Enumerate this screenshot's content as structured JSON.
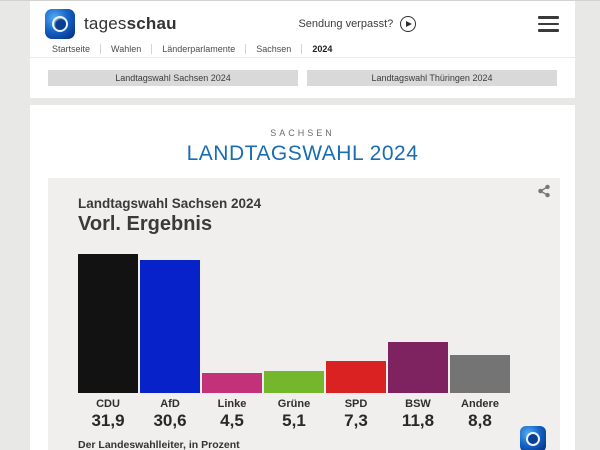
{
  "header": {
    "brand_regular": "tages",
    "brand_bold": "schau",
    "sendung_label": "Sendung verpasst?",
    "breadcrumb": [
      "Startseite",
      "Wahlen",
      "Länderparlamente",
      "Sachsen",
      "2024"
    ],
    "nav_buttons": [
      "Landtagswahl Sachsen 2024",
      "Landtagswahl Thüringen 2024"
    ]
  },
  "main": {
    "kicker": "SACHSEN",
    "title": "LANDTAGSWAHL 2024"
  },
  "chart_data": {
    "type": "bar",
    "title": "Landtagswahl Sachsen 2024",
    "subtitle": "Vorl. Ergebnis",
    "source": "Der Landeswahlleiter, in Prozent",
    "unit": "Prozent",
    "xlabel": "",
    "ylabel": "",
    "ylim": [
      0,
      32
    ],
    "grid": false,
    "legend": false,
    "categories": [
      "CDU",
      "AfD",
      "Linke",
      "Grüne",
      "SPD",
      "BSW",
      "Andere"
    ],
    "values": [
      31.9,
      30.6,
      4.5,
      5.1,
      7.3,
      11.8,
      8.8
    ],
    "value_labels": [
      "31,9",
      "30,6",
      "4,5",
      "5,1",
      "7,3",
      "11,8",
      "8,8"
    ],
    "colors": [
      "#121212",
      "#0722c8",
      "#c13278",
      "#74b62c",
      "#d92221",
      "#7f2360",
      "#747474"
    ]
  },
  "colors": {
    "page_bg": "#e8e8e7",
    "card_bg": "#ffffff",
    "chart_card_bg": "#f0efee",
    "button_bg": "#d9d9d9",
    "title_blue": "#1a6cb4",
    "brand_blue": "#0a3d96"
  }
}
